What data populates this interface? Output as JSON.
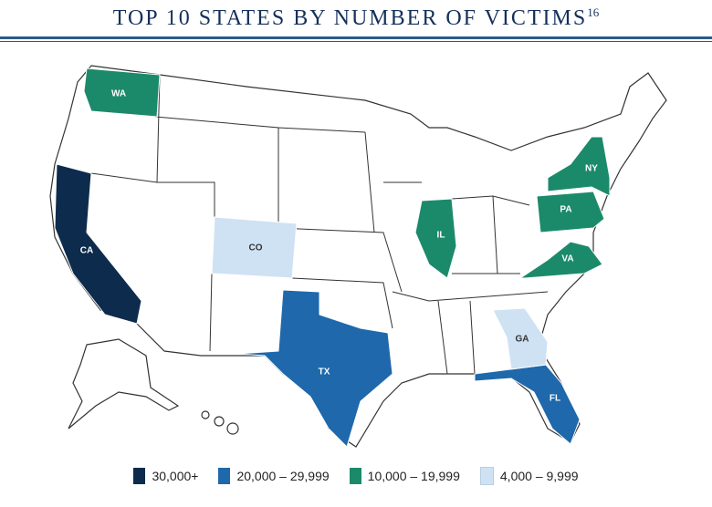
{
  "title": "TOP 10 STATES BY NUMBER OF VICTIMS",
  "title_note": "16",
  "legend": [
    {
      "label": "30,000+",
      "color": "#0d2b4c",
      "states": [
        "CA"
      ]
    },
    {
      "label": "20,000 – 29,999",
      "color": "#1e68ab",
      "states": [
        "TX",
        "FL"
      ]
    },
    {
      "label": "10,000 – 19,999",
      "color": "#1b8a6b",
      "states": [
        "WA",
        "IL",
        "NY",
        "PA",
        "VA"
      ]
    },
    {
      "label": "4,000 – 9,999",
      "color": "#cfe2f3",
      "states": [
        "CO",
        "GA"
      ]
    }
  ]
}
